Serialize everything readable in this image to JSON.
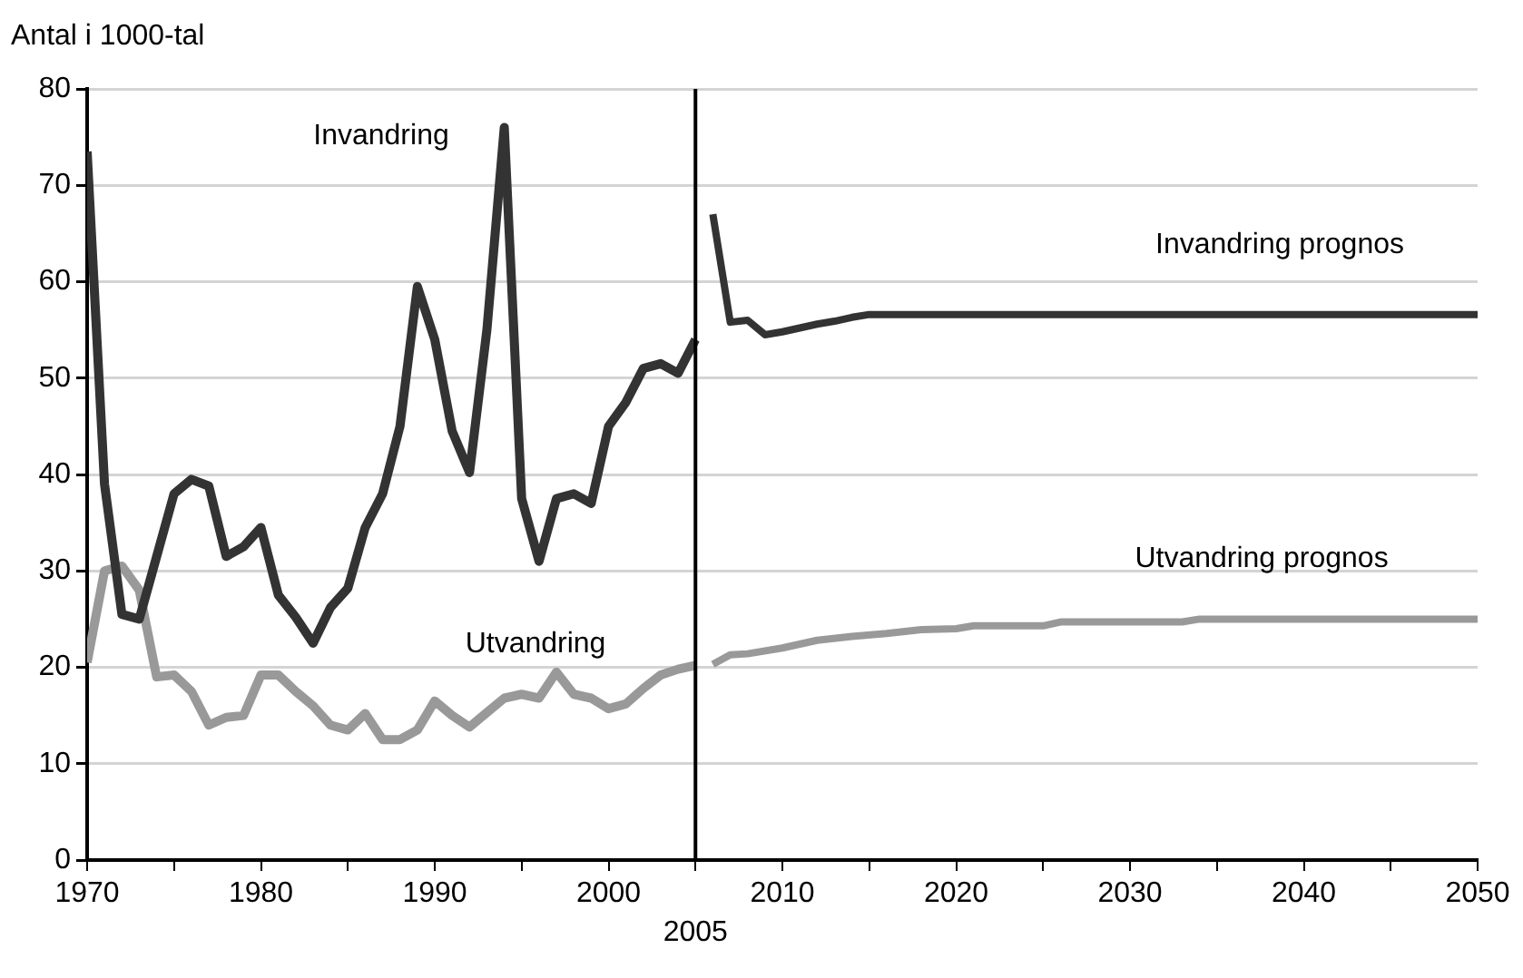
{
  "chart_data": {
    "type": "line",
    "ylabel": "Antal i 1000-tal",
    "xlim": [
      1970,
      2050
    ],
    "xticks": [
      1970,
      {
        "value": 1975,
        "label": null
      },
      1980,
      {
        "value": 1985,
        "label": null
      },
      1990,
      {
        "value": 1995,
        "label": null
      },
      2000,
      {
        "value": 2005,
        "label": null
      },
      2010,
      {
        "value": 2015,
        "label": null
      },
      2020,
      {
        "value": 2025,
        "label": null
      },
      2030,
      {
        "value": 2035,
        "label": null
      },
      2040,
      {
        "value": 2045,
        "label": null
      },
      2050
    ],
    "ylim": [
      0,
      80
    ],
    "yticks": [
      0,
      10,
      20,
      30,
      40,
      50,
      60,
      70,
      80
    ],
    "grid": "y",
    "legend": false,
    "marker": "none",
    "line_style": "solid",
    "ref_lines": [
      {
        "axis": "x",
        "value": 2005,
        "label": "2005",
        "color": "#000000"
      }
    ],
    "series": [
      {
        "name": "Invandring",
        "color": "#333333",
        "x": [
          1970,
          1971,
          1972,
          1973,
          1974,
          1975,
          1976,
          1977,
          1978,
          1979,
          1980,
          1981,
          1982,
          1983,
          1984,
          1985,
          1986,
          1987,
          1988,
          1989,
          1990,
          1991,
          1992,
          1993,
          1994,
          1995,
          1996,
          1997,
          1998,
          1999,
          2000,
          2001,
          2002,
          2003,
          2004,
          2005
        ],
        "values": [
          73.5,
          39,
          25.5,
          25,
          31.5,
          38,
          39.5,
          38.8,
          31.5,
          32.5,
          34.5,
          27.5,
          25.2,
          22.5,
          26.2,
          28.2,
          34.5,
          38,
          45,
          59.5,
          54,
          44.5,
          40.2,
          55,
          76,
          37.5,
          31,
          37.5,
          38,
          37,
          45,
          47.5,
          51,
          51.5,
          50.5,
          54
        ]
      },
      {
        "name": "Utvandring",
        "color": "#999999",
        "x": [
          1970,
          1971,
          1972,
          1973,
          1974,
          1975,
          1976,
          1977,
          1978,
          1979,
          1980,
          1981,
          1982,
          1983,
          1984,
          1985,
          1986,
          1987,
          1988,
          1989,
          1990,
          1991,
          1992,
          1993,
          1994,
          1995,
          1996,
          1997,
          1998,
          1999,
          2000,
          2001,
          2002,
          2003,
          2004,
          2005
        ],
        "values": [
          20.5,
          30,
          30.5,
          28,
          19,
          19.2,
          17.5,
          14,
          14.8,
          15,
          19.2,
          19.2,
          17.5,
          16,
          14,
          13.5,
          15.2,
          12.5,
          12.5,
          13.5,
          16.5,
          15,
          13.8,
          15.3,
          16.8,
          17.2,
          16.8,
          19.5,
          17.2,
          16.8,
          15.7,
          16.2,
          17.8,
          19.2,
          19.8,
          20.2
        ]
      },
      {
        "name": "Invandring prognos",
        "color": "#333333",
        "x": [
          2006,
          2007,
          2008,
          2009,
          2010,
          2011,
          2012,
          2013,
          2014,
          2015,
          2050
        ],
        "values": [
          67,
          55.8,
          56,
          54.5,
          54.8,
          55.2,
          55.6,
          55.9,
          56.3,
          56.6,
          56.6
        ]
      },
      {
        "name": "Utvandring prognos",
        "color": "#999999",
        "x": [
          2006,
          2007,
          2008,
          2010,
          2012,
          2014,
          2016,
          2018,
          2020,
          2021,
          2025,
          2026,
          2033,
          2034,
          2050
        ],
        "values": [
          20.3,
          21.3,
          21.4,
          22,
          22.8,
          23.2,
          23.5,
          23.9,
          24,
          24.3,
          24.3,
          24.7,
          24.7,
          25,
          25
        ]
      }
    ]
  }
}
